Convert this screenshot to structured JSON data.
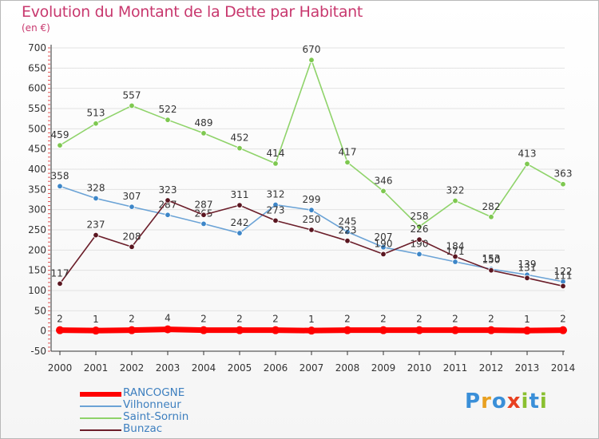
{
  "header": {
    "title": "Evolution du Montant de la Dette par Habitant",
    "subtitle": "(en €)"
  },
  "colors": {
    "title": "#c8386e",
    "legend_text": "#3d7fbf",
    "axis": "#333333",
    "grid": "#e2e2e2"
  },
  "legend": [
    {
      "label": "RANCOGNE",
      "color": "#ff0000",
      "thick": true
    },
    {
      "label": "Vilhonneur",
      "color": "#6ba3d6",
      "thick": false
    },
    {
      "label": "Saint-Sornin",
      "color": "#8fd36a",
      "thick": false
    },
    {
      "label": "Bunzac",
      "color": "#6b1e2a",
      "thick": false
    }
  ],
  "logo": {
    "text": "Proxiti",
    "letter_colors": [
      "#3a8fd8",
      "#e8a020",
      "#3a8fd8",
      "#e84020",
      "#8ac030",
      "#3a8fd8",
      "#8ac030"
    ]
  },
  "chart_data": {
    "type": "line",
    "title": "Evolution du Montant de la Dette par Habitant",
    "subtitle": "(en €)",
    "x": [
      "2000",
      "2001",
      "2002",
      "2003",
      "2004",
      "2005",
      "2006",
      "2007",
      "2008",
      "2009",
      "2010",
      "2011",
      "2012",
      "2013",
      "2014"
    ],
    "yticks": [
      "-50",
      "0",
      "50",
      "100",
      "150",
      "200",
      "250",
      "300",
      "350",
      "400",
      "450",
      "500",
      "550",
      "600",
      "650",
      "700"
    ],
    "ylim": [
      -50,
      700
    ],
    "grid": true,
    "series": [
      {
        "name": "Saint-Sornin",
        "color": "#8fd36a",
        "marker_color": "#7ec850",
        "values": [
          459,
          513,
          557,
          522,
          489,
          452,
          414,
          670,
          417,
          346,
          258,
          322,
          282,
          413,
          363
        ],
        "labels": [
          "459",
          "513",
          "557",
          "522",
          "489",
          "452",
          "414",
          "670",
          "417",
          "346",
          "258",
          "322",
          "282",
          "413",
          "363"
        ]
      },
      {
        "name": "Vilhonneur",
        "color": "#6ba3d6",
        "marker_color": "#3d86c8",
        "values": [
          358,
          328,
          307,
          287,
          265,
          242,
          312,
          299,
          245,
          207,
          190,
          171,
          153,
          139,
          122
        ],
        "labels": [
          "358",
          "328",
          "307",
          "287",
          "265",
          "242",
          "312",
          "299",
          "245",
          "207",
          "190",
          "171",
          "153",
          "139",
          "122"
        ]
      },
      {
        "name": "Bunzac",
        "color": "#6b1e2a",
        "marker_color": "#5a1620",
        "values": [
          117,
          237,
          208,
          323,
          287,
          311,
          273,
          250,
          223,
          190,
          226,
          184,
          150,
          131,
          111
        ],
        "labels": [
          "117",
          "237",
          "208",
          "323",
          "287",
          "311",
          "273",
          "250",
          "223",
          "190",
          "226",
          "184",
          "150",
          "131",
          "111"
        ]
      },
      {
        "name": "RANCOGNE",
        "color": "#ff0000",
        "marker_color": "#ff0000",
        "values": [
          2,
          1,
          2,
          4,
          2,
          2,
          2,
          1,
          2,
          2,
          2,
          2,
          2,
          1,
          2
        ],
        "labels": [
          "2",
          "1",
          "2",
          "4",
          "2",
          "2",
          "2",
          "1",
          "2",
          "2",
          "2",
          "2",
          "2",
          "1",
          "2"
        ]
      }
    ]
  }
}
